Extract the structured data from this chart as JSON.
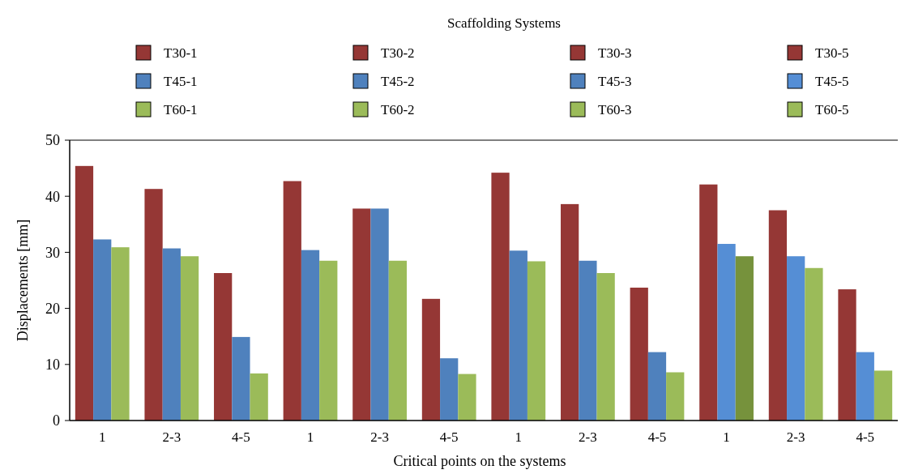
{
  "chart_data": {
    "type": "bar",
    "legend_title": "Scaffolding Systems",
    "xlabel": "Critical points on the systems",
    "ylabel": "Displacements [mm]",
    "categories": [
      "1",
      "2-3",
      "4-5",
      "1",
      "2-3",
      "4-5",
      "1",
      "2-3",
      "4-5",
      "1",
      "2-3",
      "4-5"
    ],
    "series": [
      {
        "name": "T30-1",
        "color": "#953735",
        "values": [
          45.4,
          41.3,
          26.3,
          null,
          null,
          null,
          null,
          null,
          null,
          null,
          null,
          null
        ]
      },
      {
        "name": "T45-1",
        "color": "#4f81bd",
        "values": [
          32.3,
          30.7,
          14.9,
          null,
          null,
          null,
          null,
          null,
          null,
          null,
          null,
          null
        ]
      },
      {
        "name": "T60-1",
        "color": "#9bbb59",
        "values": [
          30.9,
          29.3,
          8.4,
          null,
          null,
          null,
          null,
          null,
          null,
          null,
          null,
          null
        ]
      },
      {
        "name": "T30-2",
        "color": "#953735",
        "values": [
          null,
          null,
          null,
          42.7,
          37.8,
          21.7,
          null,
          null,
          null,
          null,
          null,
          null
        ]
      },
      {
        "name": "T45-2",
        "color": "#4f81bd",
        "values": [
          null,
          null,
          null,
          30.4,
          37.8,
          11.1,
          null,
          null,
          null,
          null,
          null,
          null
        ]
      },
      {
        "name": "T60-2",
        "color": "#9bbb59",
        "values": [
          null,
          null,
          null,
          28.5,
          28.5,
          8.3,
          null,
          null,
          null,
          null,
          null,
          null
        ]
      },
      {
        "name": "T30-3",
        "color": "#953735",
        "values": [
          null,
          null,
          null,
          null,
          null,
          null,
          44.2,
          38.6,
          23.7,
          null,
          null,
          null
        ]
      },
      {
        "name": "T45-3",
        "color": "#4f81bd",
        "values": [
          null,
          null,
          null,
          null,
          null,
          null,
          30.3,
          28.5,
          12.2,
          null,
          null,
          null
        ]
      },
      {
        "name": "T60-3",
        "color": "#9bbb59",
        "values": [
          null,
          null,
          null,
          null,
          null,
          null,
          28.4,
          26.3,
          8.6,
          null,
          null,
          null
        ]
      },
      {
        "name": "T30-5",
        "color": "#953735",
        "values": [
          null,
          null,
          null,
          null,
          null,
          null,
          null,
          null,
          null,
          42.1,
          37.5,
          23.4
        ]
      },
      {
        "name": "T45-5",
        "color": "#558ed5",
        "values": [
          null,
          null,
          null,
          null,
          null,
          null,
          null,
          null,
          null,
          31.5,
          29.3,
          12.2
        ]
      },
      {
        "name": "T60-5",
        "color": "#9bbb59",
        "colors": [
          null,
          null,
          null,
          null,
          null,
          null,
          null,
          null,
          null,
          "#76923c",
          "#9bbb59",
          "#9bbb59"
        ],
        "values": [
          null,
          null,
          null,
          null,
          null,
          null,
          null,
          null,
          null,
          29.3,
          27.2,
          8.9
        ]
      }
    ],
    "ylim": [
      0,
      50
    ],
    "yticks": [
      0,
      10,
      20,
      30,
      40,
      50
    ],
    "grid": false,
    "legend": "top"
  }
}
